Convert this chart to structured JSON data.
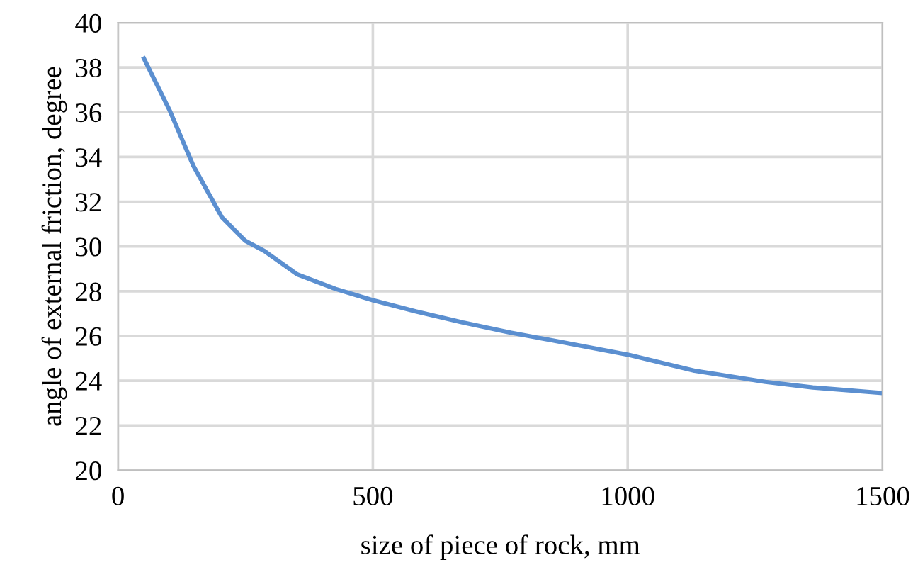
{
  "chart_data": {
    "type": "line",
    "xlabel": "size of piece of rock, mm",
    "ylabel": "angle of external friction, degree",
    "series": [
      {
        "color": "#5b8fd0",
        "x": [
          51,
          102,
          148,
          204,
          250,
          287,
          352,
          427,
          500,
          584,
          677,
          770,
          853,
          1003,
          1131,
          1270,
          1363,
          1500
        ],
        "values": [
          38.4,
          36.05,
          33.6,
          31.3,
          30.25,
          29.8,
          28.75,
          28.1,
          27.6,
          27.1,
          26.6,
          26.15,
          25.8,
          25.15,
          24.45,
          23.95,
          23.7,
          23.45
        ]
      }
    ],
    "xlim": [
      0,
      1500
    ],
    "xticks": [
      0,
      500,
      1000,
      1500
    ],
    "ylim": [
      20,
      40
    ],
    "yticks": [
      20,
      22,
      24,
      26,
      28,
      30,
      32,
      34,
      36,
      38,
      40
    ],
    "grid": true,
    "marker": "none",
    "line_style": "solid"
  }
}
